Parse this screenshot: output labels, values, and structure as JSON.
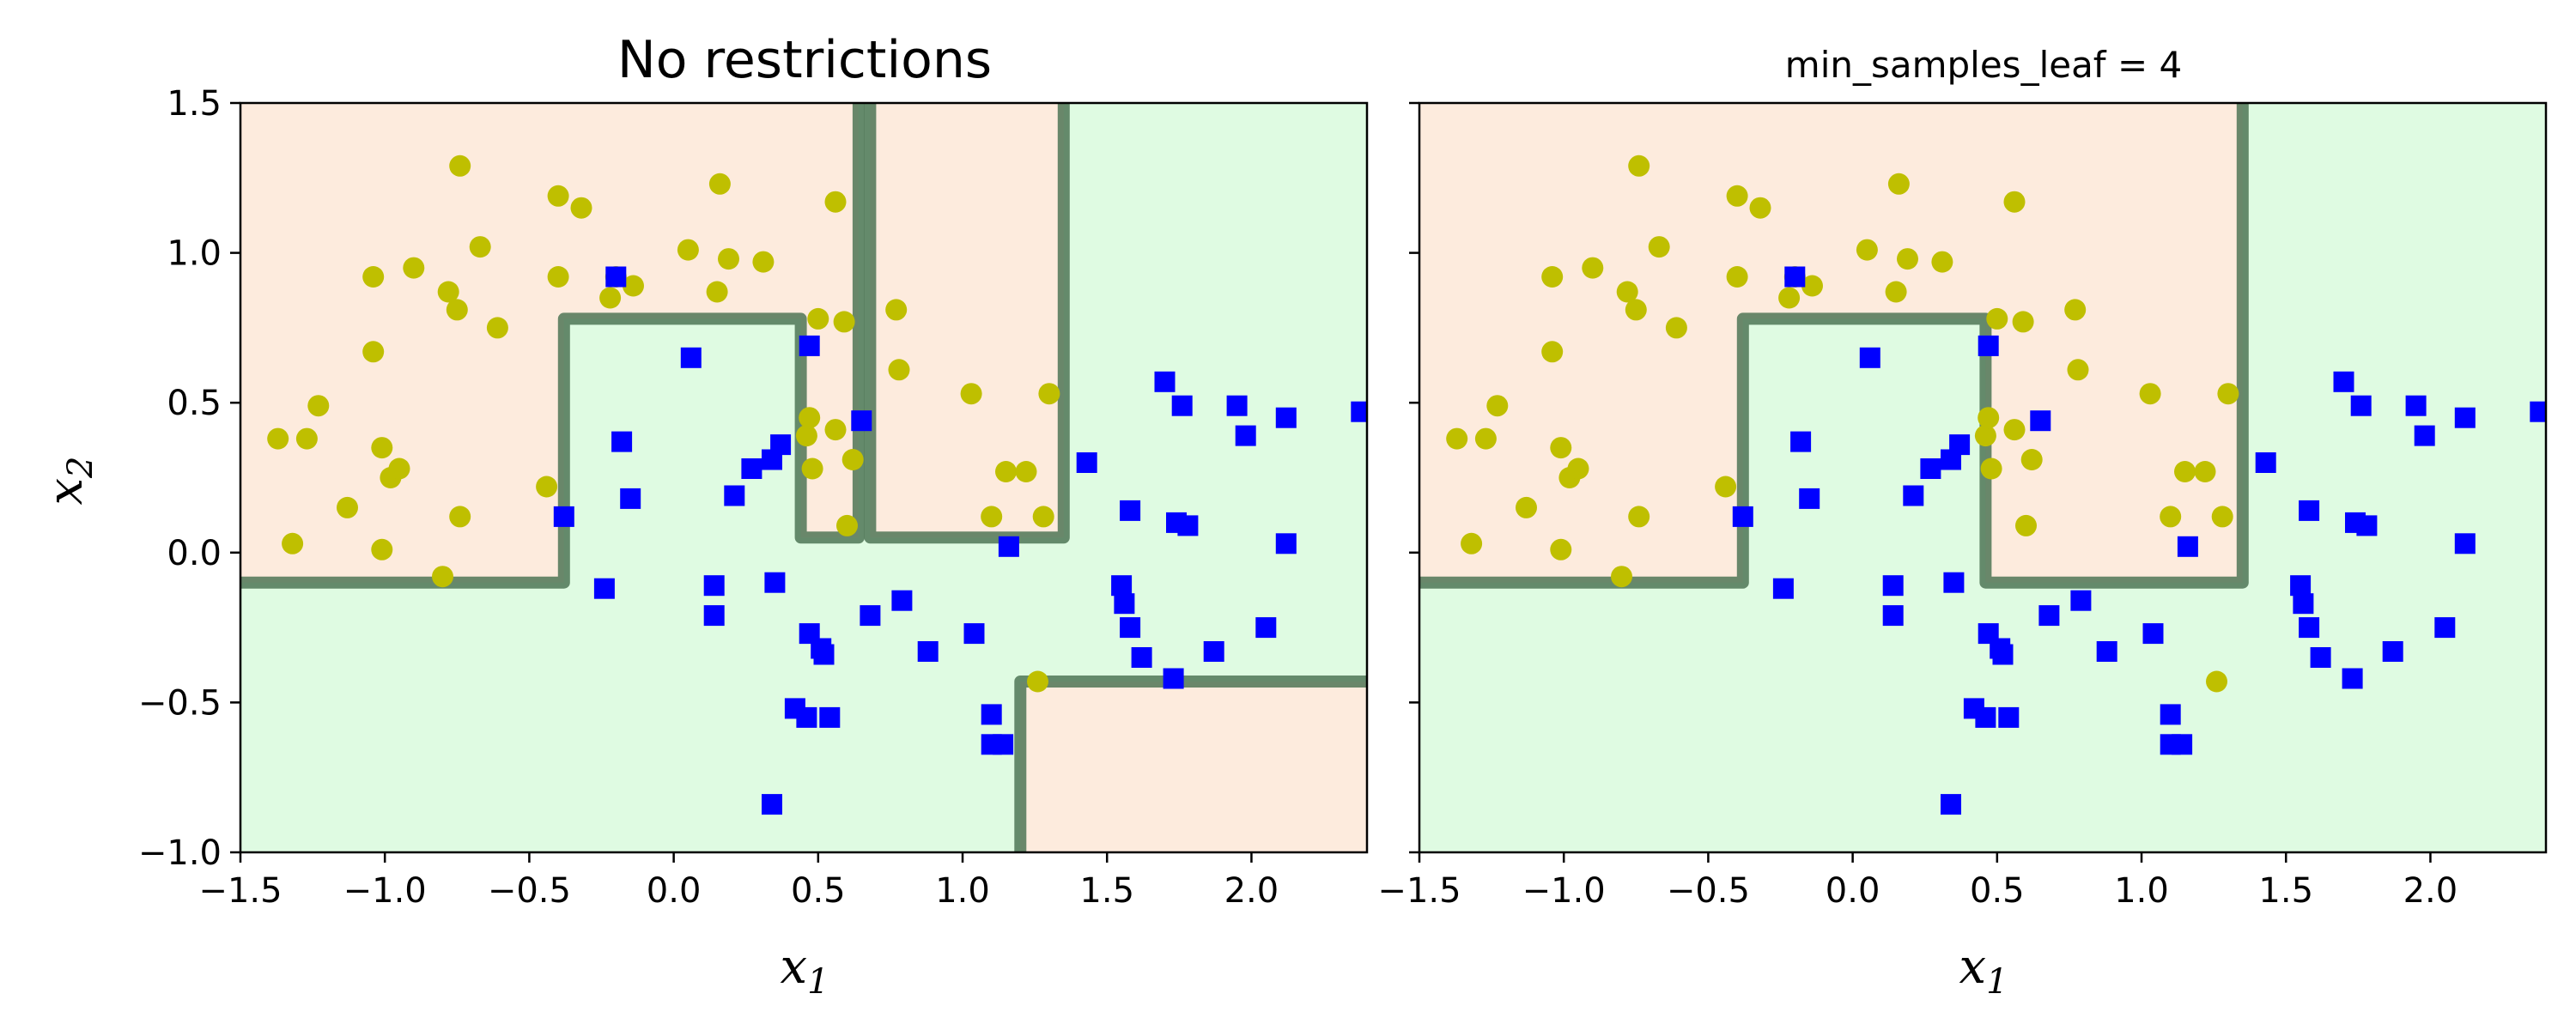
{
  "colors": {
    "class_0_region": "#fdebdd",
    "class_1_region": "#dffbe2",
    "boundary": "#4f7556",
    "class_0_marker": "#bfbf00",
    "class_1_marker": "#0000ff"
  },
  "chart_data": [
    {
      "type": "scatter",
      "title": "No restrictions",
      "xlabel": "x",
      "xlabel_sub": "1",
      "ylabel": "x",
      "ylabel_sub": "2",
      "xlim": [
        -1.5,
        2.4
      ],
      "ylim": [
        -1.0,
        1.5
      ],
      "xticks": [
        -1.5,
        -1.0,
        -0.5,
        0.0,
        0.5,
        1.0,
        1.5,
        2.0
      ],
      "xtick_labels": [
        "−1.5",
        "−1.0",
        "−0.5",
        "0.0",
        "0.5",
        "1.0",
        "1.5",
        "2.0"
      ],
      "yticks": [
        -1.0,
        -0.5,
        0.0,
        0.5,
        1.0,
        1.5
      ],
      "ytick_labels": [
        "−1.0",
        "−0.5",
        "0.0",
        "0.5",
        "1.0",
        "1.5"
      ],
      "show_ytick_labels": true,
      "decision_regions_class0": [
        [
          [
            -1.5,
            -0.1
          ],
          [
            -0.38,
            -0.1
          ],
          [
            -0.38,
            0.78
          ],
          [
            0.44,
            0.78
          ],
          [
            0.44,
            0.05
          ],
          [
            0.64,
            0.05
          ],
          [
            0.64,
            1.5
          ],
          [
            -1.5,
            1.5
          ]
        ],
        [
          [
            0.68,
            0.05
          ],
          [
            1.35,
            0.05
          ],
          [
            1.35,
            1.5
          ],
          [
            0.68,
            1.5
          ]
        ],
        [
          [
            1.2,
            -1.0
          ],
          [
            1.2,
            -0.43
          ],
          [
            2.4,
            -0.43
          ],
          [
            2.4,
            -1.0
          ]
        ]
      ],
      "decision_boundaries": [
        [
          [
            -1.5,
            -0.1
          ],
          [
            -0.38,
            -0.1
          ],
          [
            -0.38,
            0.78
          ],
          [
            0.44,
            0.78
          ],
          [
            0.44,
            0.05
          ],
          [
            0.64,
            0.05
          ],
          [
            0.64,
            1.5
          ]
        ],
        [
          [
            0.68,
            1.5
          ],
          [
            0.68,
            0.05
          ],
          [
            1.35,
            0.05
          ],
          [
            1.35,
            1.5
          ]
        ],
        [
          [
            1.2,
            -1.0
          ],
          [
            1.2,
            -0.43
          ],
          [
            2.4,
            -0.43
          ]
        ]
      ]
    },
    {
      "type": "scatter",
      "title": "min_samples_leaf = 4",
      "xlabel": "x",
      "xlabel_sub": "1",
      "xlim": [
        -1.5,
        2.4
      ],
      "ylim": [
        -1.0,
        1.5
      ],
      "xticks": [
        -1.5,
        -1.0,
        -0.5,
        0.0,
        0.5,
        1.0,
        1.5,
        2.0
      ],
      "xtick_labels": [
        "−1.5",
        "−1.0",
        "−0.5",
        "0.0",
        "0.5",
        "1.0",
        "1.5",
        "2.0"
      ],
      "yticks": [
        -1.0,
        -0.5,
        0.0,
        0.5,
        1.0,
        1.5
      ],
      "show_ytick_labels": false,
      "decision_regions_class0": [
        [
          [
            -1.5,
            -0.1
          ],
          [
            -0.38,
            -0.1
          ],
          [
            -0.38,
            0.78
          ],
          [
            0.46,
            0.78
          ],
          [
            0.46,
            -0.1
          ],
          [
            1.35,
            -0.1
          ],
          [
            1.35,
            1.5
          ],
          [
            -1.5,
            1.5
          ]
        ]
      ],
      "decision_boundaries": [
        [
          [
            -1.5,
            -0.1
          ],
          [
            -0.38,
            -0.1
          ],
          [
            -0.38,
            0.78
          ],
          [
            0.46,
            0.78
          ],
          [
            0.46,
            -0.1
          ],
          [
            1.35,
            -0.1
          ],
          [
            1.35,
            1.5
          ]
        ]
      ]
    }
  ],
  "points_class0": [
    [
      -1.37,
      0.38
    ],
    [
      -1.32,
      0.03
    ],
    [
      -1.27,
      0.38
    ],
    [
      -1.23,
      0.49
    ],
    [
      -1.13,
      0.15
    ],
    [
      -1.04,
      0.92
    ],
    [
      -1.04,
      0.67
    ],
    [
      -1.01,
      0.35
    ],
    [
      -1.01,
      0.01
    ],
    [
      -0.98,
      0.25
    ],
    [
      -0.95,
      0.28
    ],
    [
      -0.9,
      0.95
    ],
    [
      -0.8,
      -0.08
    ],
    [
      -0.78,
      0.87
    ],
    [
      -0.75,
      0.81
    ],
    [
      -0.74,
      1.29
    ],
    [
      -0.74,
      0.12
    ],
    [
      -0.67,
      1.02
    ],
    [
      -0.61,
      0.75
    ],
    [
      -0.44,
      0.22
    ],
    [
      -0.4,
      1.19
    ],
    [
      -0.4,
      0.92
    ],
    [
      -0.32,
      1.15
    ],
    [
      -0.2,
      0.92
    ],
    [
      -0.22,
      0.85
    ],
    [
      -0.14,
      0.89
    ],
    [
      0.05,
      1.01
    ],
    [
      0.15,
      0.87
    ],
    [
      0.16,
      1.23
    ],
    [
      0.19,
      0.98
    ],
    [
      0.31,
      0.97
    ],
    [
      0.46,
      0.39
    ],
    [
      0.47,
      0.45
    ],
    [
      0.48,
      0.28
    ],
    [
      0.5,
      0.78
    ],
    [
      0.56,
      0.41
    ],
    [
      0.56,
      1.17
    ],
    [
      0.59,
      0.77
    ],
    [
      0.6,
      0.09
    ],
    [
      0.62,
      0.31
    ],
    [
      0.77,
      0.81
    ],
    [
      0.78,
      0.61
    ],
    [
      1.03,
      0.53
    ],
    [
      1.1,
      0.12
    ],
    [
      1.15,
      0.27
    ],
    [
      1.22,
      0.27
    ],
    [
      1.26,
      -0.43
    ],
    [
      1.28,
      0.12
    ],
    [
      1.3,
      0.53
    ]
  ],
  "points_class1": [
    [
      -0.38,
      0.12
    ],
    [
      -0.24,
      -0.12
    ],
    [
      -0.2,
      0.92
    ],
    [
      -0.18,
      0.37
    ],
    [
      -0.15,
      0.18
    ],
    [
      0.06,
      0.65
    ],
    [
      0.14,
      -0.11
    ],
    [
      0.14,
      -0.21
    ],
    [
      0.21,
      0.19
    ],
    [
      0.27,
      0.28
    ],
    [
      0.34,
      0.31
    ],
    [
      0.34,
      -0.84
    ],
    [
      0.35,
      -0.1
    ],
    [
      0.37,
      0.36
    ],
    [
      0.42,
      -0.52
    ],
    [
      0.46,
      -0.55
    ],
    [
      0.47,
      -0.27
    ],
    [
      0.47,
      0.69
    ],
    [
      0.51,
      -0.32
    ],
    [
      0.52,
      -0.34
    ],
    [
      0.54,
      -0.55
    ],
    [
      0.65,
      0.44
    ],
    [
      0.68,
      -0.21
    ],
    [
      0.79,
      -0.16
    ],
    [
      0.88,
      -0.33
    ],
    [
      1.04,
      -0.27
    ],
    [
      1.1,
      -0.54
    ],
    [
      1.1,
      -0.64
    ],
    [
      1.14,
      -0.64
    ],
    [
      1.16,
      0.02
    ],
    [
      1.43,
      0.3
    ],
    [
      1.55,
      -0.11
    ],
    [
      1.56,
      -0.17
    ],
    [
      1.58,
      -0.25
    ],
    [
      1.58,
      0.14
    ],
    [
      1.62,
      -0.35
    ],
    [
      1.7,
      0.57
    ],
    [
      1.73,
      -0.42
    ],
    [
      1.74,
      0.1
    ],
    [
      1.76,
      0.49
    ],
    [
      1.78,
      0.09
    ],
    [
      1.87,
      -0.33
    ],
    [
      1.95,
      0.49
    ],
    [
      1.98,
      0.39
    ],
    [
      2.05,
      -0.25
    ],
    [
      2.12,
      0.03
    ],
    [
      2.12,
      0.45
    ],
    [
      2.38,
      0.47
    ]
  ]
}
